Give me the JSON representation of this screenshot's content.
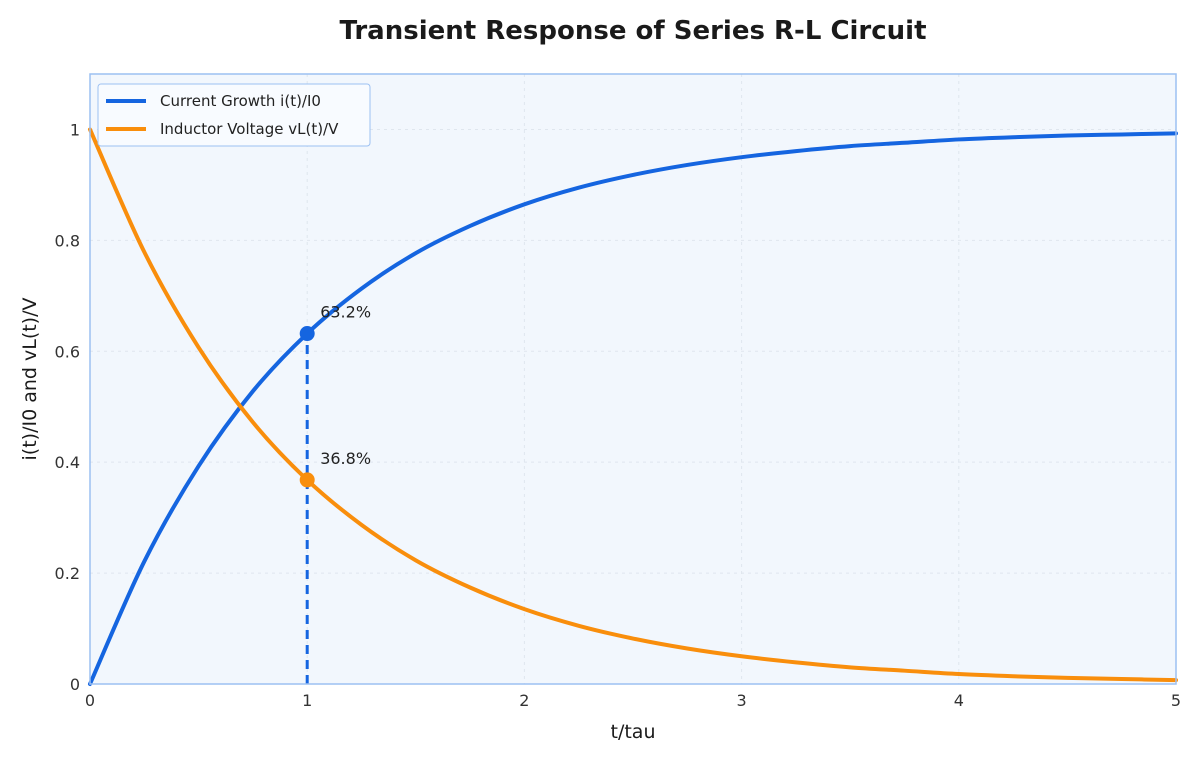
{
  "chart_data": {
    "type": "line",
    "title": "Transient Response of Series R-L Circuit",
    "xlabel": "t/tau",
    "ylabel": "i(t)/I0 and vL(t)/V",
    "xlim": [
      0,
      5
    ],
    "ylim": [
      0,
      1.1
    ],
    "xticks": [
      0,
      1,
      2,
      3,
      4,
      5
    ],
    "xtick_labels": [
      "0",
      "1",
      "2",
      "3",
      "4",
      "5"
    ],
    "yticks": [
      0,
      0.2,
      0.4,
      0.6,
      0.8,
      1.0
    ],
    "ytick_labels": [
      "0",
      "0.2",
      "0.4",
      "0.6",
      "0.8",
      "1"
    ],
    "grid": true,
    "legend_position": "top-left",
    "series": [
      {
        "name": "Current Growth i(t)/I0",
        "color": "#1565e0",
        "x": [
          0,
          0.25,
          0.5,
          0.75,
          1.0,
          1.25,
          1.5,
          1.75,
          2.0,
          2.25,
          2.5,
          2.75,
          3.0,
          3.25,
          3.5,
          3.75,
          4.0,
          4.25,
          4.5,
          4.75,
          5.0
        ],
        "y": [
          0,
          0.221,
          0.393,
          0.528,
          0.632,
          0.713,
          0.777,
          0.826,
          0.865,
          0.895,
          0.918,
          0.936,
          0.95,
          0.961,
          0.97,
          0.976,
          0.982,
          0.986,
          0.989,
          0.991,
          0.993
        ]
      },
      {
        "name": "Inductor Voltage vL(t)/V",
        "color": "#f98e0c",
        "x": [
          0,
          0.25,
          0.5,
          0.75,
          1.0,
          1.25,
          1.5,
          1.75,
          2.0,
          2.25,
          2.5,
          2.75,
          3.0,
          3.25,
          3.5,
          3.75,
          4.0,
          4.25,
          4.5,
          4.75,
          5.0
        ],
        "y": [
          1.0,
          0.779,
          0.607,
          0.472,
          0.368,
          0.287,
          0.223,
          0.174,
          0.135,
          0.105,
          0.082,
          0.064,
          0.05,
          0.039,
          0.03,
          0.024,
          0.018,
          0.014,
          0.011,
          0.009,
          0.007
        ]
      }
    ],
    "annotations": [
      {
        "x": 1,
        "y": 0.632,
        "text": "63.2%",
        "color": "#1565e0"
      },
      {
        "x": 1,
        "y": 0.368,
        "text": "36.8%",
        "color": "#f98e0c"
      }
    ],
    "marker_line": {
      "x": 1,
      "from": 0,
      "to": 0.632,
      "color": "#1565e0"
    },
    "colors": {
      "plot_background": "#f2f7fd",
      "frame": "#9cc0f2",
      "legend_border": "#9cc0f2"
    }
  }
}
